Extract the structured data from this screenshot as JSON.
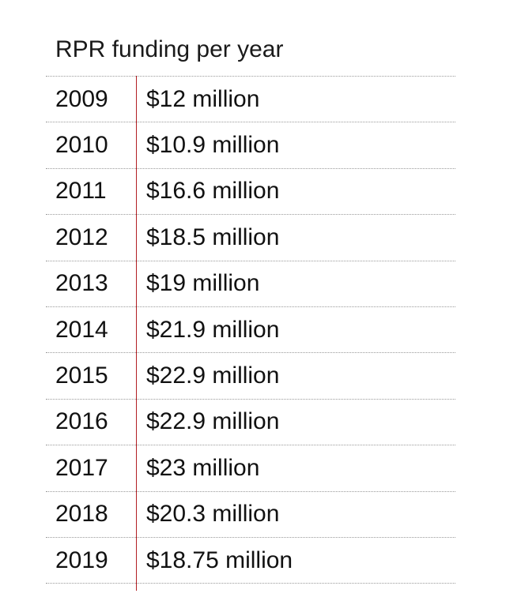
{
  "title": "RPR funding per year",
  "colors": {
    "divider": "#b21f24",
    "rule": "#9a9a9a",
    "text": "#111111"
  },
  "chart_data": {
    "type": "table",
    "title": "RPR funding per year",
    "columns": [
      "",
      ""
    ],
    "rows": [
      {
        "year": "2009",
        "funding": "$12 million"
      },
      {
        "year": "2010",
        "funding": "$10.9 million"
      },
      {
        "year": "2011",
        "funding": "$16.6 million"
      },
      {
        "year": "2012",
        "funding": "$18.5 million"
      },
      {
        "year": "2013",
        "funding": "$19 million"
      },
      {
        "year": "2014",
        "funding": "$21.9 million"
      },
      {
        "year": "2015",
        "funding": "$22.9 million"
      },
      {
        "year": "2016",
        "funding": "$22.9 million"
      },
      {
        "year": "2017",
        "funding": "$23 million"
      },
      {
        "year": "2018",
        "funding": "$20.3 million"
      },
      {
        "year": "2019",
        "funding": "$18.75 million"
      }
    ]
  }
}
